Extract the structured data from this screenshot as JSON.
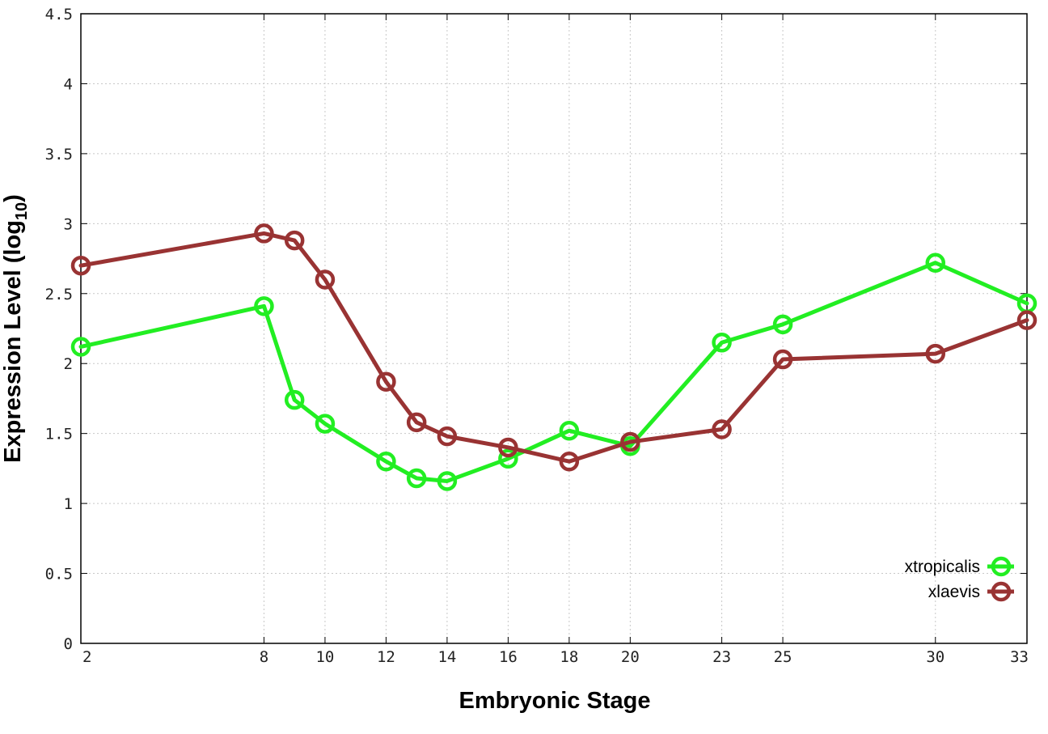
{
  "chart_data": {
    "type": "line",
    "xlabel": "Embryonic Stage",
    "ylabel_main": "Expression Level (log",
    "ylabel_sub": "10",
    "ylabel_close": ")",
    "x": [
      2,
      8,
      9,
      10,
      12,
      13,
      14,
      16,
      18,
      20,
      23,
      25,
      30,
      33
    ],
    "x_ticks": [
      "2",
      "8",
      "10",
      "12",
      "14",
      "16",
      "18",
      "20",
      "23",
      "25",
      "30",
      "33"
    ],
    "x_tick_values": [
      2,
      8,
      10,
      12,
      14,
      16,
      18,
      20,
      23,
      25,
      30,
      33
    ],
    "y_ticks": [
      "0",
      "0.5",
      "1",
      "1.5",
      "2",
      "2.5",
      "3",
      "3.5",
      "4",
      "4.5"
    ],
    "y_tick_values": [
      0,
      0.5,
      1,
      1.5,
      2,
      2.5,
      3,
      3.5,
      4,
      4.5
    ],
    "xlim": [
      2,
      33
    ],
    "ylim": [
      0,
      4.5
    ],
    "grid": true,
    "legend_position": "bottom-right",
    "series": [
      {
        "name": "xtropicalis",
        "color": "#22ee22",
        "values": [
          2.12,
          2.41,
          1.74,
          1.57,
          1.3,
          1.18,
          1.16,
          1.32,
          1.52,
          1.41,
          2.15,
          2.28,
          2.72,
          2.43
        ]
      },
      {
        "name": "xlaevis",
        "color": "#993333",
        "values": [
          2.7,
          2.93,
          2.88,
          2.6,
          1.87,
          1.58,
          1.48,
          1.4,
          1.3,
          1.44,
          1.53,
          2.03,
          2.07,
          2.31
        ]
      }
    ]
  }
}
